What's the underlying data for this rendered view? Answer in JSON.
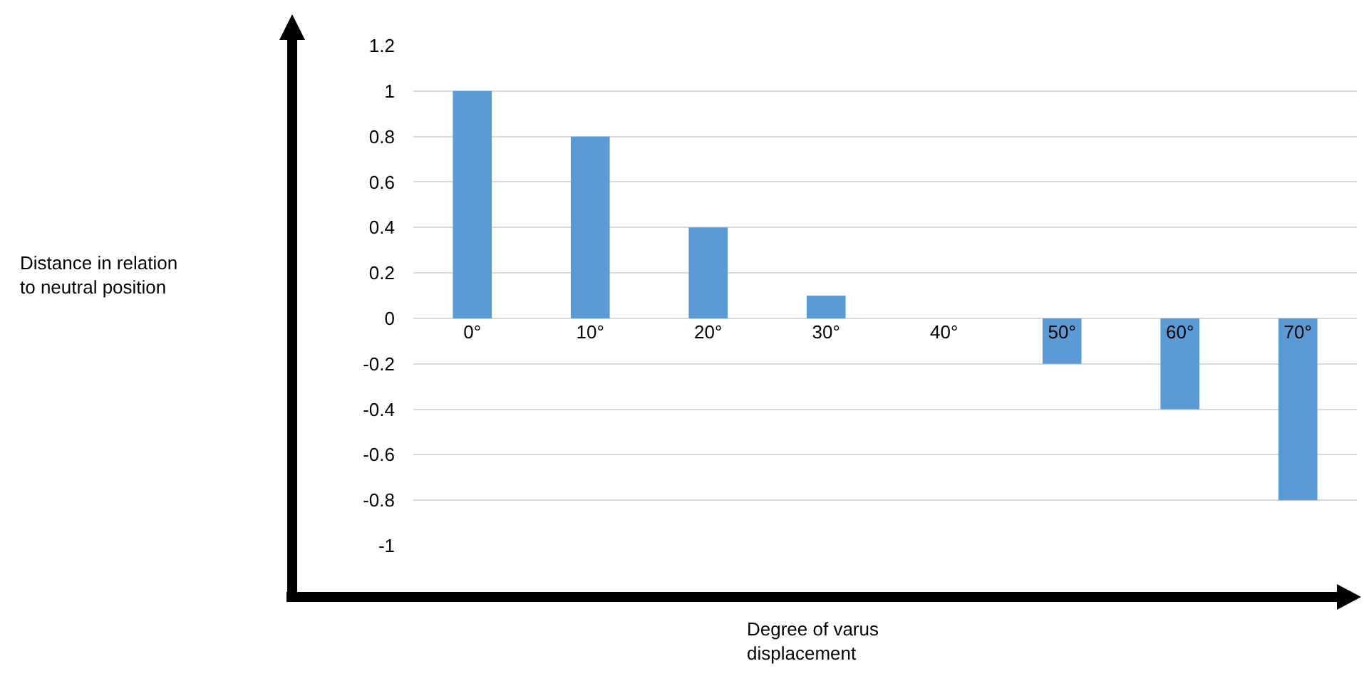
{
  "chart_data": {
    "type": "bar",
    "xlabel": "Degree of varus displacement",
    "annotations": [
      "Distance in relation to neutral position"
    ],
    "categories": [
      "0°",
      "10°",
      "20°",
      "30°",
      "40°",
      "50°",
      "60°",
      "70°"
    ],
    "values": [
      1,
      0.8,
      0.4,
      0.1,
      0,
      -0.2,
      -0.4,
      -0.8
    ],
    "color": "#5b9bd5",
    "ylim": [
      -1,
      1.2
    ],
    "yticks": [
      -1,
      -0.8,
      -0.6,
      -0.4,
      -0.2,
      0,
      0.2,
      0.4,
      0.6,
      0.8,
      1,
      1.2
    ],
    "grid": "y"
  }
}
